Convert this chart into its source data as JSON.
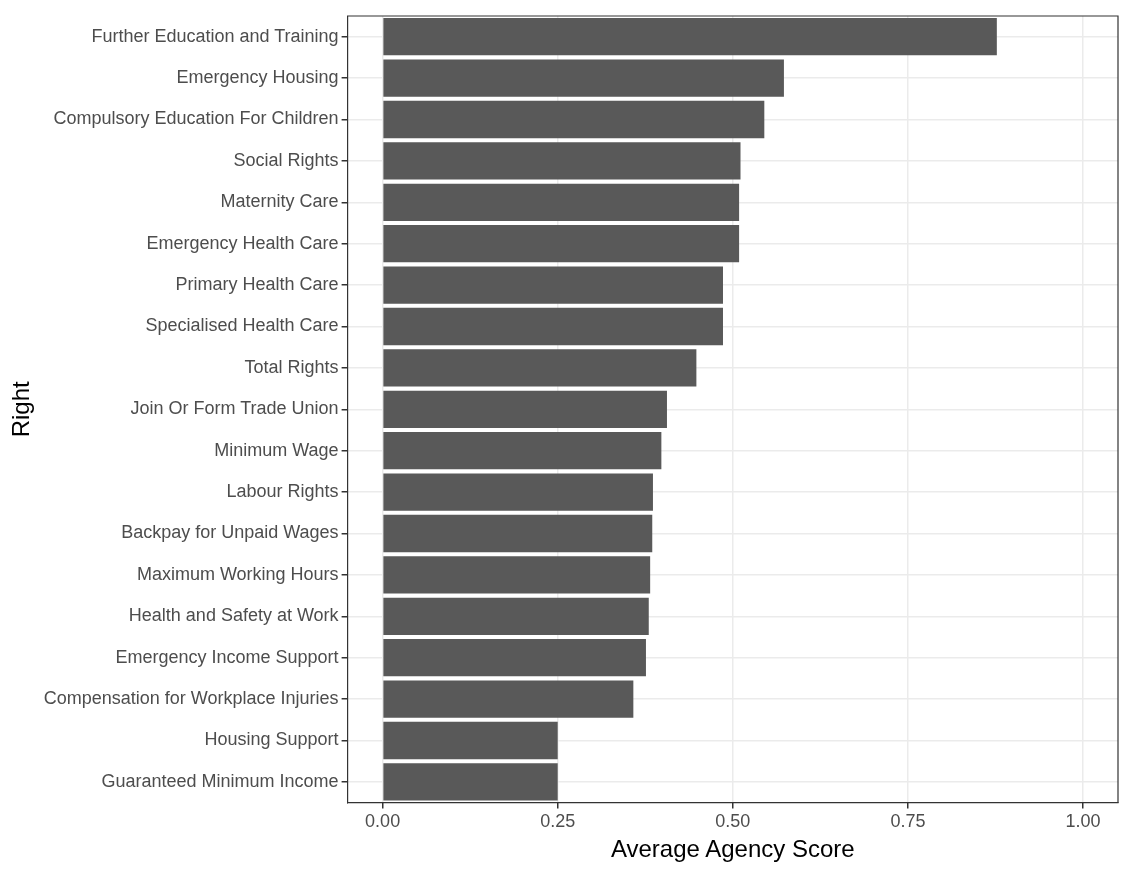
{
  "chart_data": {
    "type": "bar",
    "orientation": "horizontal",
    "xlabel": "Average Agency Score",
    "ylabel": "Right",
    "categories": [
      "Further Education and Training",
      "Emergency Housing",
      "Compulsory Education For Children",
      "Social Rights",
      "Maternity Care",
      "Emergency Health Care",
      "Primary Health Care",
      "Specialised Health Care",
      "Total Rights",
      "Join Or Form Trade Union",
      "Minimum Wage",
      "Labour Rights",
      "Backpay for Unpaid Wages",
      "Maximum Working Hours",
      "Health and Safety at Work",
      "Emergency Income Support",
      "Compensation for Workplace Injuries",
      "Housing Support",
      "Guaranteed Minimum Income"
    ],
    "values": [
      0.877,
      0.573,
      0.545,
      0.511,
      0.509,
      0.509,
      0.486,
      0.486,
      0.448,
      0.406,
      0.398,
      0.386,
      0.385,
      0.382,
      0.38,
      0.376,
      0.358,
      0.25,
      0.25
    ],
    "color": "#595959",
    "xlim": [
      -0.05,
      1.05
    ],
    "xticks": [
      {
        "value": 0,
        "label": "0.00"
      },
      {
        "value": 0.25,
        "label": "0.25"
      },
      {
        "value": 0.5,
        "label": "0.50"
      },
      {
        "value": 0.75,
        "label": "0.75"
      },
      {
        "value": 1,
        "label": "1.00"
      }
    ],
    "grid": true,
    "legend": false
  }
}
